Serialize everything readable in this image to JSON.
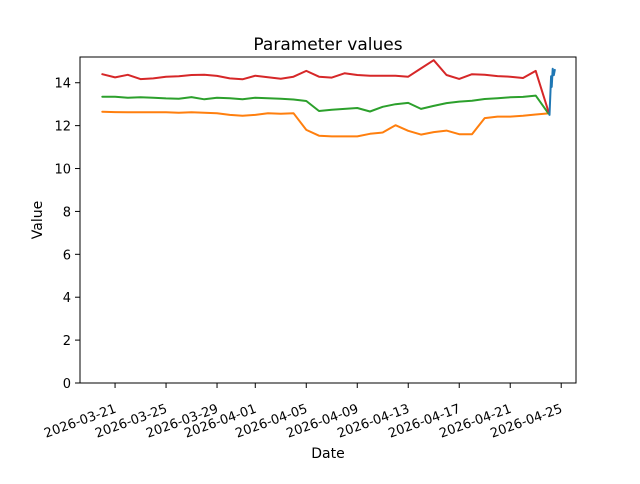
{
  "chart_data": {
    "type": "line",
    "title": "Parameter values",
    "xlabel": "Date",
    "ylabel": "Value",
    "grid": false,
    "legend_position": "none",
    "background_color": "#ffffff",
    "axes_edge_color": "#000000",
    "ylim": [
      0,
      15.2
    ],
    "x_reference_date": "2026-03-21",
    "xlim_days": [
      -2.75,
      36.16
    ],
    "y_ticks": [
      0,
      2,
      4,
      6,
      8,
      10,
      12,
      14
    ],
    "x_tick_labels": [
      "2026-03-21",
      "2026-03-25",
      "2026-03-29",
      "2026-04-01",
      "2026-04-05",
      "2026-04-09",
      "2026-04-13",
      "2026-04-17",
      "2026-04-21",
      "2026-04-25"
    ],
    "series": [
      {
        "name": "orange",
        "color": "#ff7f0e",
        "dates": [
          "2026-03-20",
          "2026-03-21",
          "2026-03-22",
          "2026-03-23",
          "2026-03-24",
          "2026-03-25",
          "2026-03-26",
          "2026-03-27",
          "2026-03-28",
          "2026-03-29",
          "2026-03-30",
          "2026-03-31",
          "2026-04-01",
          "2026-04-02",
          "2026-04-03",
          "2026-04-04",
          "2026-04-05",
          "2026-04-06",
          "2026-04-07",
          "2026-04-08",
          "2026-04-09",
          "2026-04-10",
          "2026-04-11",
          "2026-04-12",
          "2026-04-13",
          "2026-04-14",
          "2026-04-15",
          "2026-04-16",
          "2026-04-17",
          "2026-04-18",
          "2026-04-19",
          "2026-04-20",
          "2026-04-21",
          "2026-04-22",
          "2026-04-23",
          "2026-04-24"
        ],
        "values": [
          12.65,
          12.63,
          12.62,
          12.62,
          12.62,
          12.62,
          12.6,
          12.62,
          12.6,
          12.58,
          12.5,
          12.46,
          12.5,
          12.58,
          12.55,
          12.58,
          11.8,
          11.53,
          11.5,
          11.5,
          11.5,
          11.62,
          11.68,
          12.02,
          11.76,
          11.58,
          11.7,
          11.77,
          11.6,
          11.6,
          12.35,
          12.42,
          12.42,
          12.46,
          12.52,
          12.57
        ]
      },
      {
        "name": "green",
        "color": "#2ca02c",
        "dates": [
          "2026-03-20",
          "2026-03-21",
          "2026-03-22",
          "2026-03-23",
          "2026-03-24",
          "2026-03-25",
          "2026-03-26",
          "2026-03-27",
          "2026-03-28",
          "2026-03-29",
          "2026-03-30",
          "2026-03-31",
          "2026-04-01",
          "2026-04-02",
          "2026-04-03",
          "2026-04-04",
          "2026-04-05",
          "2026-04-06",
          "2026-04-07",
          "2026-04-08",
          "2026-04-09",
          "2026-04-10",
          "2026-04-11",
          "2026-04-12",
          "2026-04-13",
          "2026-04-14",
          "2026-04-15",
          "2026-04-16",
          "2026-04-17",
          "2026-04-18",
          "2026-04-19",
          "2026-04-20",
          "2026-04-21",
          "2026-04-22",
          "2026-04-23",
          "2026-04-24"
        ],
        "values": [
          13.35,
          13.35,
          13.3,
          13.32,
          13.3,
          13.27,
          13.25,
          13.33,
          13.23,
          13.3,
          13.28,
          13.23,
          13.3,
          13.28,
          13.25,
          13.22,
          13.15,
          12.68,
          12.74,
          12.78,
          12.82,
          12.66,
          12.88,
          13.0,
          13.06,
          12.78,
          12.92,
          13.05,
          13.12,
          13.16,
          13.24,
          13.28,
          13.32,
          13.34,
          13.4,
          12.56
        ]
      },
      {
        "name": "red",
        "color": "#d62728",
        "dates": [
          "2026-03-20",
          "2026-03-21",
          "2026-03-22",
          "2026-03-23",
          "2026-03-24",
          "2026-03-25",
          "2026-03-26",
          "2026-03-27",
          "2026-03-28",
          "2026-03-29",
          "2026-03-30",
          "2026-03-31",
          "2026-04-01",
          "2026-04-02",
          "2026-04-03",
          "2026-04-04",
          "2026-04-05",
          "2026-04-06",
          "2026-04-07",
          "2026-04-08",
          "2026-04-09",
          "2026-04-10",
          "2026-04-11",
          "2026-04-12",
          "2026-04-13",
          "2026-04-14",
          "2026-04-15",
          "2026-04-16",
          "2026-04-17",
          "2026-04-18",
          "2026-04-19",
          "2026-04-20",
          "2026-04-21",
          "2026-04-22",
          "2026-04-23",
          "2026-04-24"
        ],
        "values": [
          14.4,
          14.25,
          14.37,
          14.17,
          14.2,
          14.28,
          14.3,
          14.36,
          14.37,
          14.32,
          14.2,
          14.16,
          14.33,
          14.26,
          14.19,
          14.28,
          14.55,
          14.28,
          14.24,
          14.44,
          14.36,
          14.33,
          14.33,
          14.33,
          14.28,
          14.67,
          15.05,
          14.36,
          14.18,
          14.4,
          14.37,
          14.31,
          14.28,
          14.22,
          14.55,
          12.65
        ]
      },
      {
        "name": "blue",
        "color": "#1f77b4",
        "dates": [
          "2026-04-24T02:00",
          "2026-04-24T05:00",
          "2026-04-24T06:00",
          "2026-04-24T08:00",
          "2026-04-24T10:00",
          "2026-04-24T12:00"
        ],
        "values": [
          12.5,
          14.3,
          13.8,
          14.65,
          14.35,
          14.6
        ]
      }
    ]
  }
}
